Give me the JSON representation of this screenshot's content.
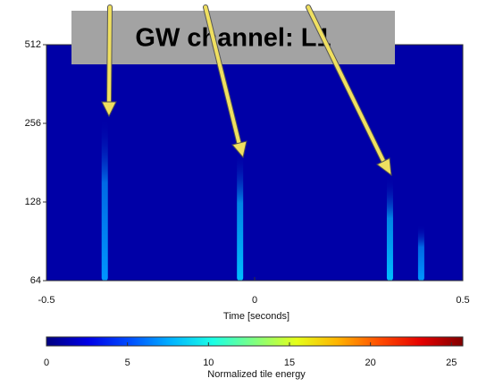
{
  "chart_data": {
    "type": "spectrogram",
    "annotation": "GW channel: L1",
    "x_label": "Time [seconds]",
    "xlim": [
      -0.5,
      0.5
    ],
    "xticks": [
      -0.5,
      0,
      0.5
    ],
    "ylim": [
      64,
      512
    ],
    "yticks": [
      64,
      128,
      256,
      512
    ],
    "y_scale": "log2",
    "background_energy": 1,
    "colormap": "jet",
    "events": [
      {
        "time": -0.36,
        "frequency": 270,
        "energy": 7
      },
      {
        "time": -0.035,
        "frequency": 200,
        "energy": 8
      },
      {
        "time": 0.325,
        "frequency": 160,
        "energy": 8
      },
      {
        "time": 0.4,
        "frequency": 105,
        "energy": 7
      }
    ],
    "colorbar": {
      "label": "Normalized tile energy",
      "lim": [
        0,
        25.7
      ],
      "ticks": [
        0,
        5,
        10,
        15,
        20,
        25
      ]
    }
  }
}
